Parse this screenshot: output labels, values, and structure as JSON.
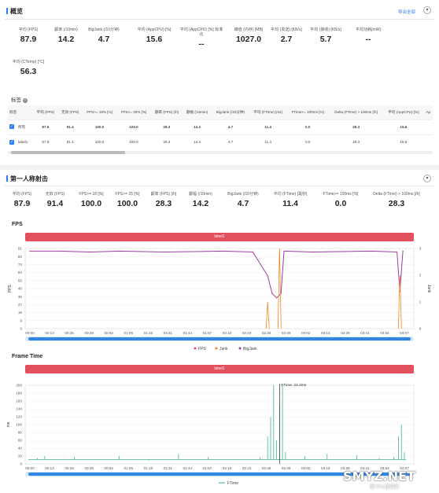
{
  "overview": {
    "title": "概览",
    "export_label": "导出全部",
    "metrics_row1": [
      {
        "label": "平均 (FPS)",
        "value": "87.9"
      },
      {
        "label": "颤率 (/10min)",
        "value": "14.2"
      },
      {
        "label": "BigJank (/10分钟)",
        "value": "4.7"
      },
      {
        "label": "平均 (AppCPU) [%]",
        "value": "15.6"
      },
      {
        "label": "平均 (AppCPU) [%] 标准化",
        "value": "--"
      },
      {
        "label": "峰值 (内存) [MB]",
        "value": "1027.0"
      },
      {
        "label": "平均 (发送) [KB/s]",
        "value": "2.7"
      },
      {
        "label": "平均 (接收) [KB/s]",
        "value": "5.7"
      },
      {
        "label": "平均功耗[mW]",
        "value": "--"
      }
    ],
    "metrics_row2": [
      {
        "label": "平均 (CTemp) [°C]",
        "value": "56.3"
      }
    ]
  },
  "labels": {
    "title": "标签",
    "columns": [
      "标签",
      "平均 (FPS)",
      "无效 (FPS)",
      "FPS>= 18% [%]",
      "FPS>= 25% [%]",
      "颤率 (FPS) [/h]",
      "颤幅 (/10min)",
      "BigJank (/10分钟)",
      "平均 (FTime) [ms]",
      "FTime>= 100ms [%]",
      "Delta (FTime) > 100ms [/h]",
      "平均 (AppCPU) [%]",
      "Ap"
    ],
    "rows": [
      {
        "name": "所有",
        "cells": [
          "87.9",
          "91.4",
          "100.0",
          "100.0",
          "28.3",
          "14.2",
          "4.7",
          "11.4",
          "0.0",
          "28.3",
          "15.6",
          ""
        ]
      },
      {
        "name": "label1",
        "cells": [
          "87.9",
          "91.4",
          "100.0",
          "100.0",
          "28.3",
          "14.2",
          "4.7",
          "11.4",
          "0.0",
          "28.3",
          "15.6",
          ""
        ]
      }
    ]
  },
  "fps_section": {
    "title": "第一人称射击",
    "metrics": [
      {
        "label": "平均 (FPS)",
        "value": "87.9"
      },
      {
        "label": "无效 (FPS)",
        "value": "91.4"
      },
      {
        "label": "FPS>= 18 [%]",
        "value": "100.0"
      },
      {
        "label": "FPS>= 25 [%]",
        "value": "100.0"
      },
      {
        "label": "颤率 (FPS) [/h]",
        "value": "28.3"
      },
      {
        "label": "颤幅 (/10min)",
        "value": "14.2"
      },
      {
        "label": "BigJank (/10分钟)",
        "value": "4.7"
      },
      {
        "label": "平均 (FTime) [毫秒]",
        "value": "11.4"
      },
      {
        "label": "FTime>= 100ms [%]",
        "value": "0.0"
      },
      {
        "label": "Delta (FTime) > 100ms [/h]",
        "value": "28.3"
      }
    ]
  },
  "chart_data": [
    {
      "type": "line",
      "title": "FPS",
      "banner": "label1",
      "ylabel": "FPS",
      "ylabel_right": "Jank",
      "y_ticks": [
        "91",
        "82",
        "73",
        "64",
        "55",
        "46",
        "36",
        "27",
        "18",
        "9",
        "0"
      ],
      "y_right_ticks": [
        "3",
        "2",
        "1",
        "0"
      ],
      "ylim": [
        0,
        91
      ],
      "x_ticks": [
        "00:00",
        "00:13",
        "00:26",
        "00:39",
        "00:52",
        "01:05",
        "01:18",
        "01:31",
        "01:44",
        "01:57",
        "02:10",
        "02:23",
        "02:36",
        "02:49",
        "03:02",
        "03:15",
        "03:28",
        "03:41",
        "03:54",
        "04:07"
      ],
      "series": [
        {
          "name": "FPS",
          "color": "#e2505c"
        },
        {
          "name": "Jank",
          "color": "#f08a24"
        },
        {
          "name": "BigJank",
          "color": "#9b3fa8"
        }
      ],
      "fps_points": [
        [
          0,
          88
        ],
        [
          20,
          88
        ],
        [
          40,
          87
        ],
        [
          60,
          88
        ],
        [
          90,
          87
        ],
        [
          130,
          88
        ],
        [
          150,
          87
        ],
        [
          160,
          60
        ],
        [
          163,
          40
        ],
        [
          166,
          35
        ],
        [
          169,
          40
        ],
        [
          171,
          88
        ],
        [
          190,
          87
        ],
        [
          230,
          88
        ],
        [
          247,
          87
        ],
        [
          249,
          42
        ],
        [
          251,
          88
        ]
      ],
      "jank_spikes": [
        [
          160,
          1
        ],
        [
          168,
          3
        ],
        [
          249,
          2
        ]
      ]
    },
    {
      "type": "line",
      "title": "Frame Time",
      "banner": "label1",
      "ylabel": "ms",
      "y_ticks": [
        "200",
        "180",
        "160",
        "140",
        "120",
        "100",
        "80",
        "60",
        "40",
        "20",
        "0"
      ],
      "ylim": [
        0,
        200
      ],
      "annotation": "FTime: 22.2ms",
      "x_ticks": [
        "00:00",
        "00:13",
        "00:26",
        "00:39",
        "00:52",
        "01:05",
        "01:18",
        "01:31",
        "01:44",
        "01:57",
        "02:10",
        "02:23",
        "02:36",
        "02:49",
        "03:02",
        "03:15",
        "03:28",
        "03:41",
        "03:54",
        "04:07"
      ],
      "series": [
        {
          "name": "FTime",
          "color": "#3fb68b"
        }
      ],
      "spikes": [
        [
          5,
          15
        ],
        [
          10,
          20
        ],
        [
          15,
          12
        ],
        [
          30,
          18
        ],
        [
          45,
          10
        ],
        [
          60,
          20
        ],
        [
          80,
          8
        ],
        [
          100,
          25
        ],
        [
          120,
          18
        ],
        [
          140,
          10
        ],
        [
          155,
          18
        ],
        [
          160,
          70
        ],
        [
          162,
          120
        ],
        [
          164,
          200
        ],
        [
          166,
          60
        ],
        [
          168,
          150
        ],
        [
          170,
          200
        ],
        [
          172,
          30
        ],
        [
          185,
          20
        ],
        [
          200,
          25
        ],
        [
          220,
          22
        ],
        [
          235,
          15
        ],
        [
          245,
          18
        ],
        [
          248,
          70
        ],
        [
          250,
          100
        ],
        [
          252,
          30
        ]
      ],
      "base": 11
    }
  ],
  "watermark": "SMYZ.NET",
  "watermark_sub": "值 什么值得买"
}
